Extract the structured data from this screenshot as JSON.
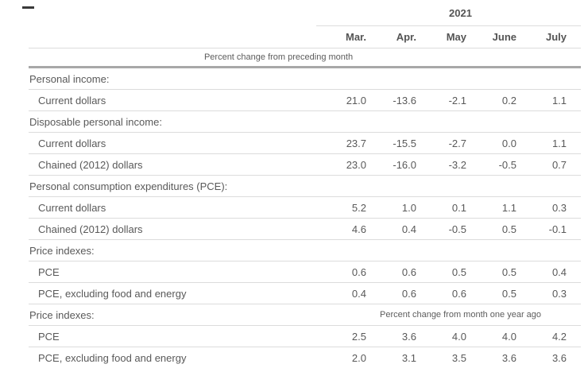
{
  "page": {
    "dash_mark": "—"
  },
  "colors": {
    "text": "#595959",
    "border_light": "#dcdcdc",
    "border_heavy": "#a8a8a8",
    "background": "#ffffff"
  },
  "chart_data": {
    "type": "table",
    "year": "2021",
    "columns": [
      "Mar.",
      "Apr.",
      "May",
      "June",
      "July"
    ],
    "subtitle": "Percent change from preceding month",
    "rows": [
      {
        "type": "section",
        "label": "Personal income:"
      },
      {
        "type": "data",
        "label": "Current dollars",
        "values": [
          "21.0",
          "-13.6",
          "-2.1",
          "0.2",
          "1.1"
        ]
      },
      {
        "type": "section",
        "label": "Disposable personal income:"
      },
      {
        "type": "data",
        "label": "Current dollars",
        "values": [
          "23.7",
          "-15.5",
          "-2.7",
          "0.0",
          "1.1"
        ]
      },
      {
        "type": "data",
        "label": "Chained (2012) dollars",
        "values": [
          "23.0",
          "-16.0",
          "-3.2",
          "-0.5",
          "0.7"
        ]
      },
      {
        "type": "section",
        "label": "Personal consumption expenditures (PCE):"
      },
      {
        "type": "data",
        "label": "Current dollars",
        "values": [
          "5.2",
          "1.0",
          "0.1",
          "1.1",
          "0.3"
        ]
      },
      {
        "type": "data",
        "label": "Chained (2012) dollars",
        "values": [
          "4.6",
          "0.4",
          "-0.5",
          "0.5",
          "-0.1"
        ]
      },
      {
        "type": "section",
        "label": "Price indexes:"
      },
      {
        "type": "data",
        "label": "PCE",
        "values": [
          "0.6",
          "0.6",
          "0.5",
          "0.5",
          "0.4"
        ]
      },
      {
        "type": "data",
        "label": "PCE, excluding food and energy",
        "values": [
          "0.4",
          "0.6",
          "0.6",
          "0.5",
          "0.3"
        ]
      },
      {
        "type": "section",
        "label": "Price indexes:",
        "note": "Percent change from month one year ago"
      },
      {
        "type": "data",
        "label": "PCE",
        "values": [
          "2.5",
          "3.6",
          "4.0",
          "4.0",
          "4.2"
        ]
      },
      {
        "type": "data",
        "label": "PCE, excluding food and energy",
        "values": [
          "2.0",
          "3.1",
          "3.5",
          "3.6",
          "3.6"
        ]
      }
    ]
  }
}
